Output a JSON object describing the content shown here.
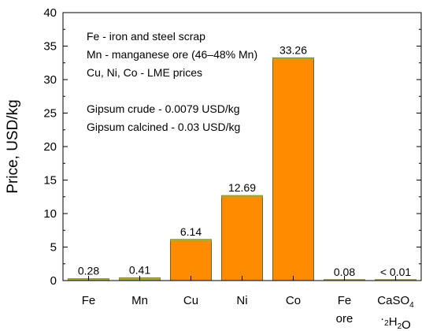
{
  "chart_data": {
    "type": "bar",
    "title": "",
    "xlabel": "",
    "ylabel": "Price, USD/kg",
    "ylim": [
      0,
      40
    ],
    "yticks": [
      0,
      5,
      10,
      15,
      20,
      25,
      30,
      35,
      40
    ],
    "grid": false,
    "categories": [
      {
        "lines": [
          "Fe"
        ]
      },
      {
        "lines": [
          "Mn"
        ]
      },
      {
        "lines": [
          "Cu"
        ]
      },
      {
        "lines": [
          "Ni"
        ]
      },
      {
        "lines": [
          "Co"
        ]
      },
      {
        "lines": [
          "Fe",
          "ore"
        ]
      },
      {
        "lines": [
          "CaSO4",
          "·2H2O"
        ]
      }
    ],
    "values": [
      0.28,
      0.41,
      6.14,
      12.69,
      33.26,
      0.08,
      0.01
    ],
    "value_labels": [
      "0.28",
      "0.41",
      "6.14",
      "12.69",
      "33.26",
      "0.08",
      "< 0.01"
    ],
    "colors": {
      "bar_fill": "#ff8c00",
      "bar_top": "#a9a936",
      "bar_outline": "#4a4a1a"
    },
    "annotations": [
      "Fe - iron and steel scrap",
      "Mn - manganese ore (46–48% Mn)",
      "Cu, Ni, Co - LME prices",
      "",
      "Gipsum crude - 0.0079 USD/kg",
      "Gipsum calcined - 0.03 USD/kg"
    ]
  }
}
